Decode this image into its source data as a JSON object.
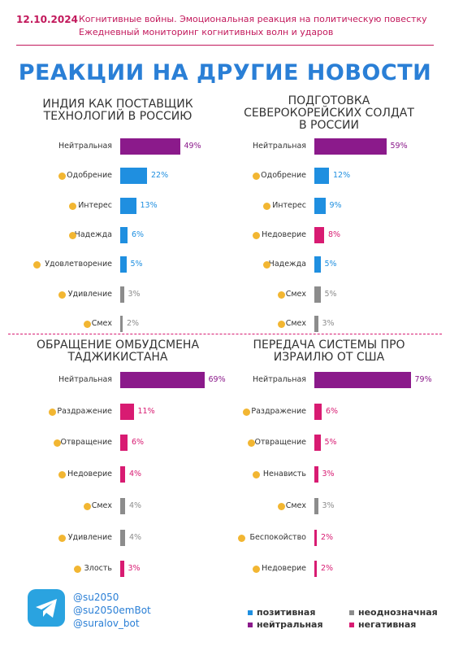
{
  "header": {
    "date": "12.10.2024",
    "line1": "Когнитивные войны. Эмоциональная реакция на политическую повестку",
    "line2": "Ежедневный мониторинг когнитивных волн и ударов"
  },
  "title": "РЕАКЦИИ НА ДРУГИЕ НОВОСТИ",
  "chart_data": [
    {
      "type": "bar",
      "orientation": "horizontal",
      "title": "ИНДИЯ КАК ПОСТАВЩИК\nТЕХНОЛОГИЙ В РОССИЮ",
      "categories": [
        "Нейтральная",
        "Одобрение",
        "Интерес",
        "Надежда",
        "Удовлетворение",
        "Удивление",
        "Смех"
      ],
      "values": [
        49,
        22,
        13,
        6,
        5,
        3,
        2
      ],
      "value_labels": [
        "49%",
        "22%",
        "13%",
        "6%",
        "5%",
        "3%",
        "2%"
      ],
      "colors": [
        "#8b1a8b",
        "#1f8fe0",
        "#1f8fe0",
        "#1f8fe0",
        "#1f8fe0",
        "#8c8c8c",
        "#8c8c8c"
      ]
    },
    {
      "type": "bar",
      "orientation": "horizontal",
      "title": "ПОДГОТОВКА\nСЕВЕРОКОРЕЙСКИХ СОЛДАТ\nВ РОССИИ",
      "categories": [
        "Нейтральная",
        "Одобрение",
        "Интерес",
        "Недоверие",
        "Надежда",
        "Смех",
        "Смех"
      ],
      "values": [
        59,
        12,
        9,
        8,
        5,
        5,
        3
      ],
      "value_labels": [
        "59%",
        "12%",
        "9%",
        "8%",
        "5%",
        "5%",
        "3%"
      ],
      "colors": [
        "#8b1a8b",
        "#1f8fe0",
        "#1f8fe0",
        "#d81b72",
        "#1f8fe0",
        "#8c8c8c",
        "#8c8c8c"
      ]
    },
    {
      "type": "bar",
      "orientation": "horizontal",
      "title": "ОБРАЩЕНИЕ ОМБУДСМЕНА\nТАДЖИКИСТАНА",
      "categories": [
        "Нейтральная",
        "Раздражение",
        "Отвращение",
        "Недоверие",
        "Смех",
        "Удивление",
        "Злость"
      ],
      "values": [
        69,
        11,
        6,
        4,
        4,
        4,
        3
      ],
      "value_labels": [
        "69%",
        "11%",
        "6%",
        "4%",
        "4%",
        "4%",
        "3%"
      ],
      "colors": [
        "#8b1a8b",
        "#d81b72",
        "#d81b72",
        "#d81b72",
        "#8c8c8c",
        "#8c8c8c",
        "#d81b72"
      ]
    },
    {
      "type": "bar",
      "orientation": "horizontal",
      "title": "ПЕРЕДАЧА СИСТЕМЫ ПРО\nИЗРАИЛЮ ОТ США",
      "categories": [
        "Нейтральная",
        "Раздражение",
        "Отвращение",
        "Ненависть",
        "Смех",
        "Беспокойство",
        "Недоверие"
      ],
      "values": [
        79,
        6,
        5,
        3,
        3,
        2,
        2
      ],
      "value_labels": [
        "79%",
        "6%",
        "5%",
        "3%",
        "3%",
        "2%",
        "2%"
      ],
      "colors": [
        "#8b1a8b",
        "#d81b72",
        "#d81b72",
        "#d81b72",
        "#8c8c8c",
        "#d81b72",
        "#d81b72"
      ]
    }
  ],
  "legend": [
    {
      "name": "позитивная",
      "color": "#1f8fe0"
    },
    {
      "name": "неоднозначная",
      "color": "#8c8c8c"
    },
    {
      "name": "нейтральная",
      "color": "#8b1a8b"
    },
    {
      "name": "негативная",
      "color": "#d81b72"
    }
  ],
  "footer": {
    "handles": [
      "@su2050",
      "@su2050emBot",
      "@suralov_bot"
    ]
  }
}
